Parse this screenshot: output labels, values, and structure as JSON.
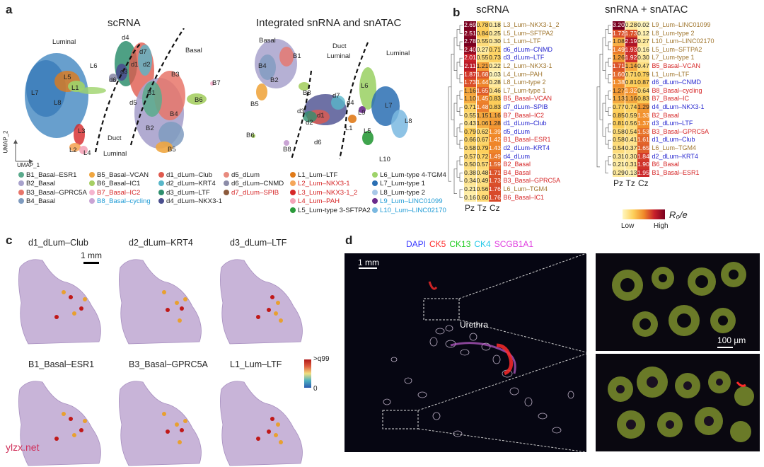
{
  "panel_a": {
    "letter": "a",
    "title_left": "scRNA",
    "title_right": "Integrated snRNA and snATAC",
    "axis_y": "UMAP_2",
    "axis_x": "UMAP_1",
    "left_labels": {
      "luminal": "Luminal",
      "basal": "Basal",
      "duct": "Duct",
      "duct2": "Luminal",
      "L6": "L6",
      "L5": "L5",
      "L1": "L1",
      "L7": "L7",
      "L8": "L8",
      "L3": "L3",
      "L2": "L2",
      "L4": "L4",
      "d6": "d6",
      "d3": "d3",
      "d4": "d4",
      "d7": "d7",
      "d1": "d1",
      "d2": "d2",
      "d5": "d5",
      "B1": "B1",
      "B2": "B2",
      "B3": "B3",
      "B4": "B4",
      "B5": "B5",
      "B6": "B6",
      "B7": "B7"
    },
    "right_labels": {
      "basal": "Basal",
      "duct": "Duct",
      "duct2": "Luminal",
      "luminal": "Luminal",
      "B1": "B1",
      "B2": "B2",
      "B3": "B3",
      "B4": "B4",
      "B5": "B5",
      "B6": "B6",
      "B8": "B8",
      "d1": "d1",
      "d2": "d2",
      "d3": "d3",
      "d4": "d4",
      "d6": "d6",
      "d7": "d7",
      "L1": "L1",
      "L5": "L5",
      "L6": "L6",
      "L7": "L7",
      "L8": "L8",
      "L9": "L9",
      "L10": "L10"
    },
    "legend": [
      {
        "label": "B1_Basal–ESR1",
        "color": "#5aaa8c",
        "text_color": "#222"
      },
      {
        "label": "B2_Basal",
        "color": "#a8a2cc",
        "text_color": "#222"
      },
      {
        "label": "B3_Basal–GPRC5A",
        "color": "#e8756a",
        "text_color": "#222"
      },
      {
        "label": "B4_Basal",
        "color": "#7f9bbf",
        "text_color": "#222"
      },
      {
        "label": "B5_Basal–VCAN",
        "color": "#f0a640",
        "text_color": "#222"
      },
      {
        "label": "B6_Basal–IC1",
        "color": "#a6cf64",
        "text_color": "#222"
      },
      {
        "label": "B7_Basal–IC2",
        "color": "#f5b5cf",
        "text_color": "#d62728"
      },
      {
        "label": "B8_Basal–cycling",
        "color": "#c9a4d4",
        "text_color": "#1f9bd5"
      },
      {
        "label": "d1_dLum–Club",
        "color": "#e05a4e",
        "text_color": "#222"
      },
      {
        "label": "d2_dLum–KRT4",
        "color": "#59b7c9",
        "text_color": "#222"
      },
      {
        "label": "d3_dLum–LTF",
        "color": "#2f8f6e",
        "text_color": "#222"
      },
      {
        "label": "d4_dLum–NKX3-1",
        "color": "#4a4e8e",
        "text_color": "#222"
      },
      {
        "label": "d5_dLum",
        "color": "#e88a7e",
        "text_color": "#222"
      },
      {
        "label": "d6_dLum–CNMD",
        "color": "#8c8ca8",
        "text_color": "#222"
      },
      {
        "label": "d7_dLum–SPIB",
        "color": "#8c5a3c",
        "text_color": "#d62728"
      },
      {
        "label": "L1_Lum–LTF",
        "color": "#e07b1a",
        "text_color": "#222"
      },
      {
        "label": "L2_Lum–NKX3-1",
        "color": "#f5a65a",
        "text_color": "#d62728"
      },
      {
        "label": "L3_Lum–NKX3-1_2",
        "color": "#d62728",
        "text_color": "#d62728"
      },
      {
        "label": "L4_Lum–PAH",
        "color": "#f4a4b8",
        "text_color": "#d62728"
      },
      {
        "label": "L5_Lum-type 3-SFTPA2",
        "color": "#2a9a3a",
        "text_color": "#222"
      },
      {
        "label": "L6_Lum-type 4-TGM4",
        "color": "#9ed36a",
        "text_color": "#222"
      },
      {
        "label": "L7_Lum-type 1",
        "color": "#2a6fb3",
        "text_color": "#222"
      },
      {
        "label": "L8_Lum-type 2",
        "color": "#a8c8e8",
        "text_color": "#222"
      },
      {
        "label": "L9_Lum–LINC01099",
        "color": "#6a2a8c",
        "text_color": "#1f9bd5"
      },
      {
        "label": "L10_Lum–LINC02170",
        "color": "#7ab8e0",
        "text_color": "#1f9bd5"
      }
    ]
  },
  "panel_b": {
    "letter": "b",
    "title_left": "scRNA",
    "title_right": "snRNA + snATAC",
    "columns": [
      "Pz",
      "Tz",
      "Cz"
    ],
    "legend_title": "R₀/e",
    "legend_low": "Low",
    "legend_high": "High",
    "left_rows": [
      {
        "label": "L3_Lum–NKX3-1_2",
        "v": [
          "2.69",
          "0.78",
          "0.18"
        ],
        "n": [
          2.69,
          0.78,
          0.18
        ],
        "c": "#a0762e"
      },
      {
        "label": "L5_Lum–SFTPA2",
        "v": [
          "2.51",
          "0.84",
          "0.25"
        ],
        "n": [
          2.51,
          0.84,
          0.25
        ],
        "c": "#a0762e"
      },
      {
        "label": "L1_Lum–LTF",
        "v": [
          "2.78",
          "0.55",
          "0.30"
        ],
        "n": [
          2.78,
          0.55,
          0.3
        ],
        "c": "#a0762e"
      },
      {
        "label": "d6_dLum–CNMD",
        "v": [
          "2.40",
          "0.27",
          "0.71"
        ],
        "n": [
          2.4,
          0.27,
          0.71
        ],
        "c": "#2a2ad0"
      },
      {
        "label": "d3_dLum–LTF",
        "v": [
          "2.01",
          "0.55",
          "0.73"
        ],
        "n": [
          2.01,
          0.55,
          0.73
        ],
        "c": "#2a2ad0"
      },
      {
        "label": "L2_Lum–NKX3-1",
        "v": [
          "2.11",
          "1.21",
          "0.22"
        ],
        "n": [
          2.11,
          1.21,
          0.22
        ],
        "c": "#a0762e"
      },
      {
        "label": "L4_Lum–PAH",
        "v": [
          "1.87",
          "1.68",
          "0.03"
        ],
        "n": [
          1.87,
          1.68,
          0.03
        ],
        "c": "#a0762e"
      },
      {
        "label": "L8_Lum-type 2",
        "v": [
          "1.73",
          "1.44",
          "0.28"
        ],
        "n": [
          1.73,
          1.44,
          0.28
        ],
        "c": "#a0762e"
      },
      {
        "label": "L7_Lum-type 1",
        "v": [
          "1.16",
          "1.65",
          "0.46"
        ],
        "n": [
          1.16,
          1.65,
          0.46
        ],
        "c": "#a0762e"
      },
      {
        "label": "B5_Basal–VCAN",
        "v": [
          "1.10",
          "1.45",
          "0.83"
        ],
        "n": [
          1.1,
          1.45,
          0.83
        ],
        "c": "#d62728"
      },
      {
        "label": "d7_dLum–SPIB",
        "v": [
          "0.71",
          "1.48",
          "0.83"
        ],
        "n": [
          0.71,
          1.48,
          0.83
        ],
        "c": "#2a2ad0"
      },
      {
        "label": "B7_Basal–IC2",
        "v": [
          "0.55",
          "1.15",
          "1.16"
        ],
        "n": [
          0.55,
          1.15,
          1.16
        ],
        "c": "#d62728"
      },
      {
        "label": "d1_dLum–Club",
        "v": [
          "0.43",
          "1.06",
          "1.28"
        ],
        "n": [
          0.43,
          1.06,
          1.28
        ],
        "c": "#2a2ad0"
      },
      {
        "label": "d5_dLum",
        "v": [
          "0.79",
          "0.62",
          "1.39"
        ],
        "n": [
          0.79,
          0.62,
          1.39
        ],
        "c": "#2a2ad0"
      },
      {
        "label": "B1_Basal–ESR1",
        "v": [
          "0.66",
          "0.67",
          "1.42"
        ],
        "n": [
          0.66,
          0.67,
          1.42
        ],
        "c": "#d62728"
      },
      {
        "label": "d2_dLum–KRT4",
        "v": [
          "0.58",
          "0.79",
          "1.43"
        ],
        "n": [
          0.58,
          0.79,
          1.43
        ],
        "c": "#2a2ad0"
      },
      {
        "label": "d4_dLum",
        "v": [
          "0.57",
          "0.72",
          "1.49"
        ],
        "n": [
          0.57,
          0.72,
          1.49
        ],
        "c": "#2a2ad0"
      },
      {
        "label": "B2_Basal",
        "v": [
          "0.50",
          "0.57",
          "1.59"
        ],
        "n": [
          0.5,
          0.57,
          1.59
        ],
        "c": "#d62728"
      },
      {
        "label": "B4_Basal",
        "v": [
          "0.38",
          "0.48",
          "1.71"
        ],
        "n": [
          0.38,
          0.48,
          1.71
        ],
        "c": "#d62728"
      },
      {
        "label": "B3_Basal–GPRC5A",
        "v": [
          "0.34",
          "0.49",
          "1.73"
        ],
        "n": [
          0.34,
          0.49,
          1.73
        ],
        "c": "#d62728"
      },
      {
        "label": "L6_Lum–TGM4",
        "v": [
          "0.21",
          "0.56",
          "1.76"
        ],
        "n": [
          0.21,
          0.56,
          1.76
        ],
        "c": "#a0762e"
      },
      {
        "label": "B6_Basal–IC1",
        "v": [
          "0.16",
          "0.60",
          "1.76"
        ],
        "n": [
          0.16,
          0.6,
          1.76
        ],
        "c": "#d62728"
      }
    ],
    "right_rows": [
      {
        "label": "L9_Lum–LINC01099",
        "v": [
          "3.20",
          "0.28",
          "0.02"
        ],
        "n": [
          3.2,
          0.28,
          0.02
        ],
        "c": "#a0762e"
      },
      {
        "label": "L8_Lum-type 2",
        "v": [
          "1.72",
          "1.73",
          "0.12"
        ],
        "n": [
          1.72,
          1.73,
          0.12
        ],
        "c": "#a0762e"
      },
      {
        "label": "L10_Lum–LINC02170",
        "v": [
          "1.08",
          "2.19",
          "0.27"
        ],
        "n": [
          1.08,
          2.19,
          0.27
        ],
        "c": "#a0762e"
      },
      {
        "label": "L5_Lum–SFTPA2",
        "v": [
          "1.49",
          "1.93",
          "0.16"
        ],
        "n": [
          1.49,
          1.93,
          0.16
        ],
        "c": "#a0762e"
      },
      {
        "label": "L7_Lum-type 1",
        "v": [
          "1.26",
          "1.92",
          "0.30"
        ],
        "n": [
          1.26,
          1.92,
          0.3
        ],
        "c": "#a0762e"
      },
      {
        "label": "B5_Basal–VCAN",
        "v": [
          "1.71",
          "1.14",
          "0.47"
        ],
        "n": [
          1.71,
          1.14,
          0.47
        ],
        "c": "#d62728"
      },
      {
        "label": "L1_Lum–LTF",
        "v": [
          "1.60",
          "0.71",
          "0.79"
        ],
        "n": [
          1.6,
          0.71,
          0.79
        ],
        "c": "#a0762e"
      },
      {
        "label": "d6_dLum–CNMD",
        "v": [
          "1.38",
          "0.81",
          "0.87"
        ],
        "n": [
          1.38,
          0.81,
          0.87
        ],
        "c": "#2a2ad0"
      },
      {
        "label": "B8_Basal–cycling",
        "v": [
          "1.27",
          "1.32",
          "0.64"
        ],
        "n": [
          1.27,
          1.32,
          0.64
        ],
        "c": "#d62728"
      },
      {
        "label": "B7_Basal–IC",
        "v": [
          "1.13",
          "1.16",
          "0.83"
        ],
        "n": [
          1.13,
          1.16,
          0.83
        ],
        "c": "#d62728"
      },
      {
        "label": "d4_dLum–NKX3-1",
        "v": [
          "0.77",
          "0.74",
          "1.29"
        ],
        "n": [
          0.77,
          0.74,
          1.29
        ],
        "c": "#2a2ad0"
      },
      {
        "label": "B2_Basal",
        "v": [
          "0.85",
          "0.59",
          "1.33"
        ],
        "n": [
          0.85,
          0.59,
          1.33
        ],
        "c": "#d62728"
      },
      {
        "label": "d3_dLum–LTF",
        "v": [
          "0.81",
          "0.56",
          "1.37"
        ],
        "n": [
          0.81,
          0.56,
          1.37
        ],
        "c": "#2a2ad0"
      },
      {
        "label": "B3_Basal–GPRC5A",
        "v": [
          "0.58",
          "0.54",
          "1.53"
        ],
        "n": [
          0.58,
          0.54,
          1.53
        ],
        "c": "#d62728"
      },
      {
        "label": "d1_dLum–Club",
        "v": [
          "0.58",
          "0.41",
          "1.61"
        ],
        "n": [
          0.58,
          0.41,
          1.61
        ],
        "c": "#2a2ad0"
      },
      {
        "label": "L6_Lum–TGM4",
        "v": [
          "0.54",
          "0.37",
          "1.65"
        ],
        "n": [
          0.54,
          0.37,
          1.65
        ],
        "c": "#a0762e"
      },
      {
        "label": "d2_dLum–KRT4",
        "v": [
          "0.31",
          "0.30",
          "1.84"
        ],
        "n": [
          0.31,
          0.3,
          1.84
        ],
        "c": "#2a2ad0"
      },
      {
        "label": "B6_Basal",
        "v": [
          "0.21",
          "0.31",
          "1.90"
        ],
        "n": [
          0.21,
          0.31,
          1.9
        ],
        "c": "#d62728"
      },
      {
        "label": "B1_Basal–ESR1",
        "v": [
          "0.29",
          "0.13",
          "1.95"
        ],
        "n": [
          0.29,
          0.13,
          1.95
        ],
        "c": "#d62728"
      }
    ]
  },
  "panel_c": {
    "letter": "c",
    "scale": "1 mm",
    "titles": [
      "d1_dLum–Club",
      "d2_dLum–KRT4",
      "d3_dLum–LTF",
      "B1_Basal–ESR1",
      "B3_Basal–GPRC5A",
      "L1_Lum–LTF"
    ],
    "cbar_top": ">q99",
    "cbar_bottom": "0"
  },
  "panel_d": {
    "letter": "d",
    "stains": [
      {
        "label": "DAPI",
        "color": "#3a3aff"
      },
      {
        "label": "CK5",
        "color": "#ff2a2a"
      },
      {
        "label": "CK13",
        "color": "#22cc22"
      },
      {
        "label": "CK4",
        "color": "#22c8e8"
      },
      {
        "label": "SCGB1A1",
        "color": "#e040e0"
      }
    ],
    "scale_main": "1 mm",
    "urethra": "Urethra",
    "scale_zoom": "100 µm"
  },
  "watermark": "ylzx.net"
}
